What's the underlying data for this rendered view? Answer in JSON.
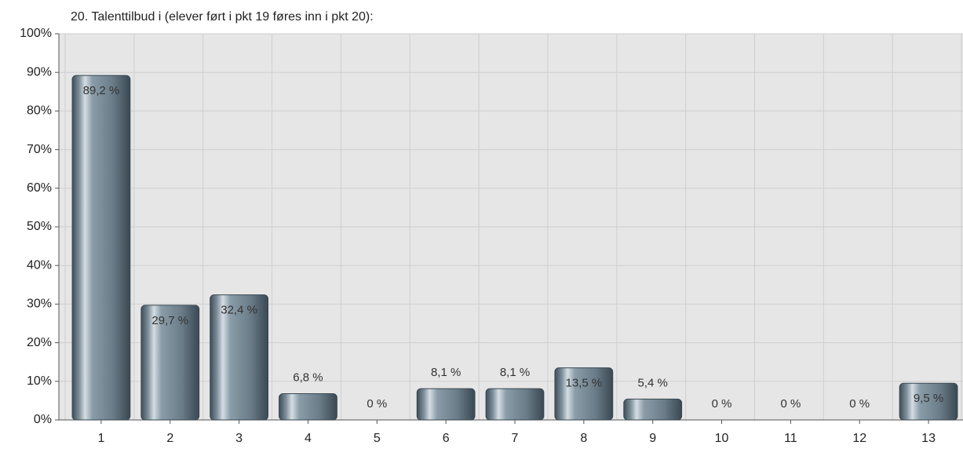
{
  "chart_data": {
    "type": "bar",
    "title": "20. Talenttilbud i (elever ført i pkt 19 føres inn i pkt 20):",
    "categories": [
      "1",
      "2",
      "3",
      "4",
      "5",
      "6",
      "7",
      "8",
      "9",
      "10",
      "11",
      "12",
      "13"
    ],
    "values": [
      89.2,
      29.7,
      32.4,
      6.8,
      0,
      8.1,
      8.1,
      13.5,
      5.4,
      0,
      0,
      0,
      9.5
    ],
    "value_labels": [
      "89,2 %",
      "29,7 %",
      "32,4 %",
      "6,8 %",
      "0 %",
      "8,1 %",
      "8,1 %",
      "13,5 %",
      "5,4 %",
      "0 %",
      "0 %",
      "0 %",
      "9,5 %"
    ],
    "color": "#6e808c",
    "ylim": [
      0,
      100
    ],
    "yticks": [
      {
        "value": 0,
        "label": "0%"
      },
      {
        "value": 10,
        "label": "10%"
      },
      {
        "value": 20,
        "label": "20%"
      },
      {
        "value": 30,
        "label": "30%"
      },
      {
        "value": 40,
        "label": "40%"
      },
      {
        "value": 50,
        "label": "50%"
      },
      {
        "value": 60,
        "label": "60%"
      },
      {
        "value": 70,
        "label": "70%"
      },
      {
        "value": 80,
        "label": "80%"
      },
      {
        "value": 90,
        "label": "90%"
      },
      {
        "value": 100,
        "label": "100%"
      }
    ],
    "grid": true
  }
}
